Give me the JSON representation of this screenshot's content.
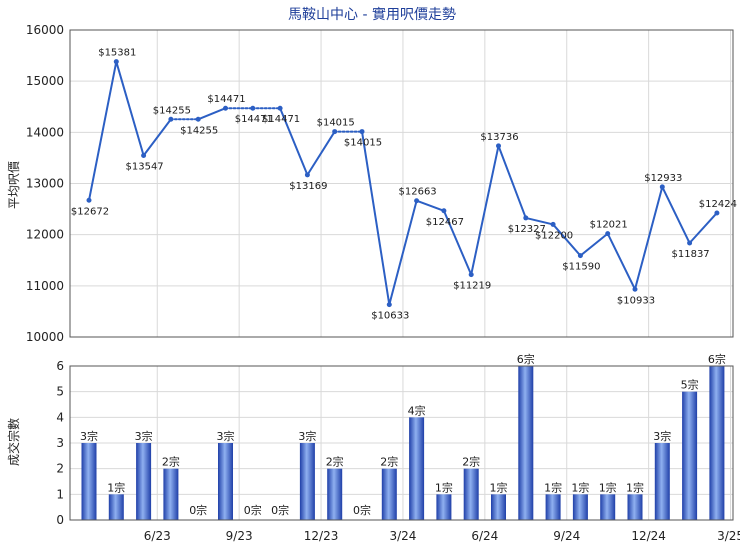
{
  "chart_data": {
    "title": "馬鞍山中心 - 實用呎價走勢",
    "colors": {
      "line": "#2c5fc4",
      "bar_dark": "#1f3fa8",
      "bar_light": "#8fb0f0",
      "grid": "#d9d9d9",
      "axis": "#555555"
    },
    "x_tick_labels": [
      "6/23",
      "9/23",
      "12/23",
      "3/24",
      "6/24",
      "9/24",
      "12/24",
      "3/25"
    ],
    "x_tick_indices": [
      2,
      5,
      8,
      11,
      14,
      17,
      20,
      23
    ],
    "price_chart": {
      "type": "line",
      "ylabel": "平均呎價",
      "ylim": [
        10000,
        16000
      ],
      "yticks": [
        10000,
        11000,
        12000,
        13000,
        14000,
        15000,
        16000
      ],
      "values": [
        12672,
        15381,
        13547,
        14255,
        14255,
        14471,
        14471,
        14471,
        13169,
        14015,
        14015,
        10633,
        12663,
        12467,
        11219,
        13736,
        12327,
        12200,
        11590,
        12021,
        10933,
        12933,
        11837,
        12424
      ],
      "labels": [
        "$12672",
        "$15381",
        "$13547",
        "$14255",
        "$14255",
        "$14471",
        "$14471",
        "$14471",
        "$13169",
        "$14015",
        "$14015",
        "$10633",
        "$12663",
        "$12467",
        "$11219",
        "$13736",
        "$12327",
        "$12200",
        "$11590",
        "$12021",
        "$10933",
        "$12933",
        "$11837",
        "$12424"
      ],
      "carried_forward": [
        4,
        6,
        7,
        10
      ]
    },
    "volume_chart": {
      "type": "bar",
      "ylabel": "成交宗數",
      "ylim": [
        0,
        6
      ],
      "yticks": [
        0,
        1,
        2,
        3,
        4,
        5,
        6
      ],
      "values": [
        3,
        1,
        3,
        2,
        0,
        3,
        0,
        0,
        3,
        2,
        0,
        2,
        4,
        1,
        2,
        1,
        6,
        1,
        1,
        1,
        1,
        3,
        5,
        6
      ],
      "labels": [
        "3宗",
        "1宗",
        "3宗",
        "2宗",
        "0宗",
        "3宗",
        "0宗",
        "0宗",
        "3宗",
        "2宗",
        "0宗",
        "2宗",
        "4宗",
        "1宗",
        "2宗",
        "1宗",
        "6宗",
        "1宗",
        "1宗",
        "1宗",
        "1宗",
        "3宗",
        "5宗",
        "6宗"
      ]
    }
  }
}
